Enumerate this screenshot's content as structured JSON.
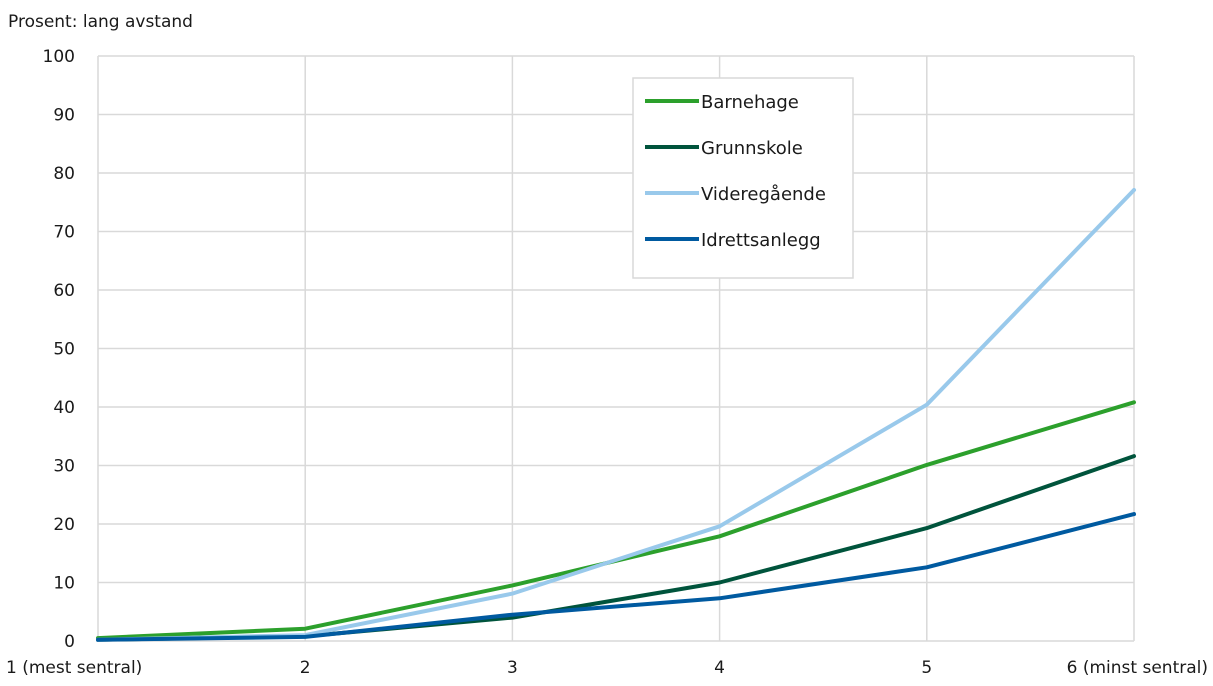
{
  "chart_data": {
    "type": "line",
    "title": "",
    "ylabel": "Prosent: lang avstand",
    "xlabel": "",
    "categories": [
      "1 (mest sentral)",
      "2",
      "3",
      "4",
      "5",
      "6 (minst sentral)"
    ],
    "ylim": [
      0,
      100
    ],
    "yticks": [
      0,
      10,
      20,
      30,
      40,
      50,
      60,
      70,
      80,
      90,
      100
    ],
    "grid": true,
    "legend_position": "top-right",
    "series": [
      {
        "name": "Barnehage",
        "color": "#2ca02c",
        "values": [
          0.5,
          2.1,
          9.5,
          17.9,
          30.1,
          40.8
        ]
      },
      {
        "name": "Grunnskole",
        "color": "#00543c",
        "values": [
          0.2,
          0.8,
          4.0,
          10.0,
          19.3,
          31.6
        ]
      },
      {
        "name": "Videregående",
        "color": "#99c9eb",
        "values": [
          0.2,
          1.0,
          8.1,
          19.6,
          40.4,
          77.1
        ]
      },
      {
        "name": "Idrettsanlegg",
        "color": "#005aa0",
        "values": [
          0.2,
          0.7,
          4.5,
          7.3,
          12.6,
          21.7
        ]
      }
    ]
  }
}
